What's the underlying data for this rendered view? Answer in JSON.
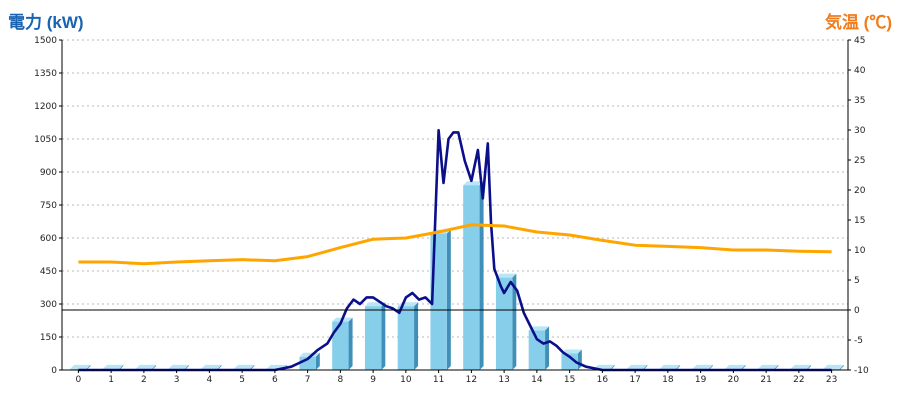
{
  "chart_data": {
    "type": "bar",
    "ylabel_left": "電力 (kW)",
    "ylabel_right": "気温 (℃)",
    "ylim_left": [
      0,
      1500
    ],
    "ylim_right": [
      -10,
      45
    ],
    "yticks_left": [
      0,
      150,
      300,
      450,
      600,
      750,
      900,
      1050,
      1200,
      1350,
      1500
    ],
    "yticks_right": [
      -10,
      -5,
      0,
      5,
      10,
      15,
      20,
      25,
      30,
      35,
      40,
      45
    ],
    "categories": [
      "0",
      "1",
      "2",
      "3",
      "4",
      "5",
      "6",
      "7",
      "8",
      "9",
      "10",
      "11",
      "12",
      "13",
      "14",
      "15",
      "16",
      "17",
      "18",
      "19",
      "20",
      "21",
      "22",
      "23"
    ],
    "grid": true,
    "series": [
      {
        "kind": "bar",
        "axis": "left",
        "values": [
          5,
          5,
          5,
          5,
          5,
          5,
          5,
          60,
          220,
          290,
          290,
          620,
          840,
          420,
          180,
          75,
          5,
          5,
          5,
          5,
          5,
          5,
          5,
          5
        ],
        "color": "#87ceeb"
      },
      {
        "kind": "line",
        "axis": "left",
        "color": "#0b0f8a",
        "x": [
          0,
          1,
          2,
          3,
          4,
          5,
          6,
          6.5,
          7,
          7.3,
          7.6,
          7.8,
          8,
          8.2,
          8.4,
          8.6,
          8.8,
          9,
          9.2,
          9.4,
          9.6,
          9.8,
          10,
          10.2,
          10.4,
          10.6,
          10.8,
          11,
          11.15,
          11.3,
          11.45,
          11.6,
          11.8,
          12,
          12.2,
          12.35,
          12.5,
          12.6,
          12.7,
          12.8,
          12.9,
          13,
          13.2,
          13.4,
          13.6,
          13.8,
          14,
          14.2,
          14.4,
          14.6,
          14.8,
          15,
          15.2,
          15.5,
          16,
          17,
          18,
          19,
          20,
          21,
          22,
          23
        ],
        "y": [
          0,
          0,
          0,
          0,
          0,
          0,
          0,
          15,
          50,
          90,
          120,
          170,
          210,
          280,
          320,
          300,
          330,
          330,
          310,
          290,
          280,
          260,
          330,
          350,
          320,
          330,
          300,
          1090,
          850,
          1050,
          1080,
          1080,
          950,
          860,
          1000,
          780,
          1030,
          670,
          460,
          420,
          380,
          350,
          400,
          360,
          260,
          200,
          140,
          120,
          130,
          110,
          80,
          60,
          35,
          15,
          0,
          0,
          0,
          0,
          0,
          0,
          0,
          0
        ]
      },
      {
        "kind": "line",
        "axis": "right",
        "color": "#ffa500",
        "x": [
          0,
          1,
          2,
          3,
          4,
          5,
          6,
          7,
          8,
          9,
          10,
          11,
          12,
          13,
          14,
          15,
          16,
          17,
          18,
          19,
          20,
          21,
          22,
          23
        ],
        "y": [
          8,
          8,
          7.7,
          8,
          8.2,
          8.4,
          8.2,
          8.9,
          10.4,
          11.8,
          12,
          13,
          14.2,
          14,
          13,
          12.5,
          11.6,
          10.8,
          10.6,
          10.4,
          10,
          10,
          9.8,
          9.7
        ]
      }
    ]
  }
}
